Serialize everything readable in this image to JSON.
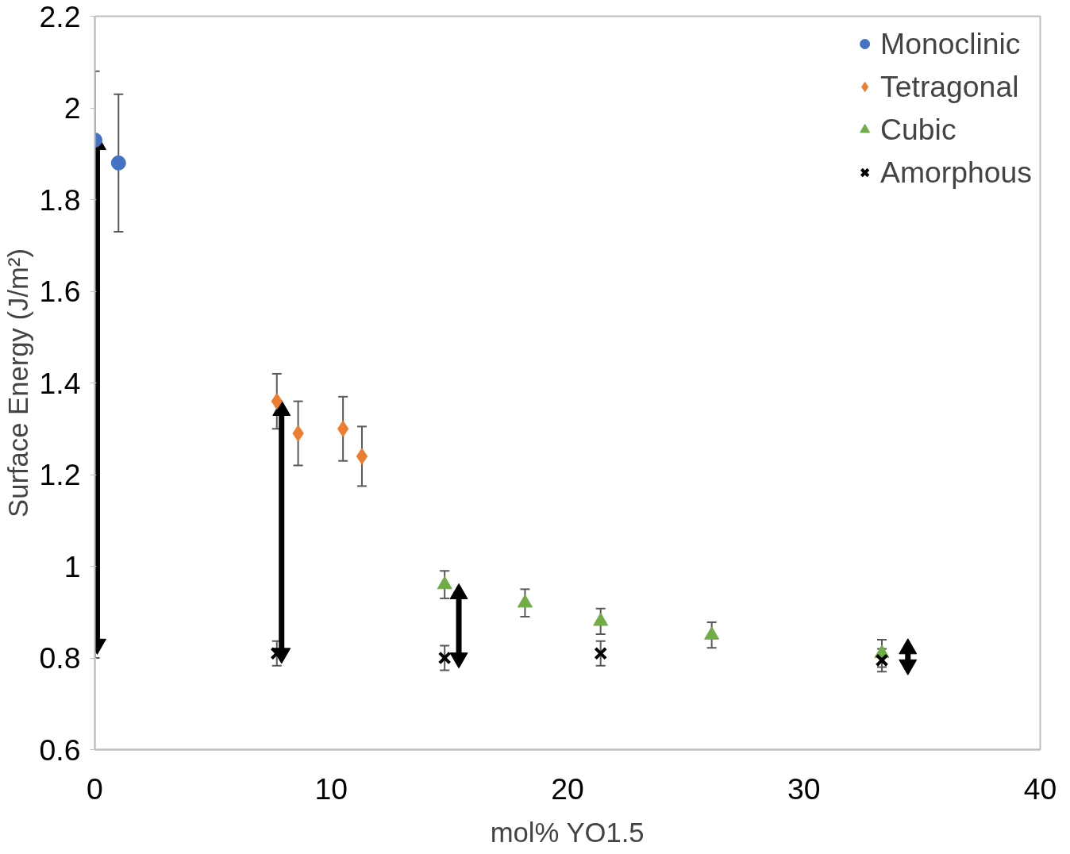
{
  "chart_data": {
    "type": "scatter",
    "xlabel": "mol% YO1.5",
    "ylabel": "Surface Energy (J/m²)",
    "xlim": [
      0,
      40
    ],
    "xticks": [
      0,
      10,
      20,
      30,
      40
    ],
    "ylim": [
      0.6,
      2.2
    ],
    "yticks": [
      0.6,
      0.8,
      1,
      1.2,
      1.4,
      1.6,
      1.8,
      2,
      2.2
    ],
    "grid": false,
    "legend": "top right",
    "series": [
      {
        "name": "Monoclinic",
        "color": "#4472c4",
        "marker": "circle",
        "x": [
          0,
          1.0
        ],
        "values": [
          1.93,
          1.88
        ],
        "errors": [
          0.15,
          0.15
        ]
      },
      {
        "name": "Tetragonal",
        "color": "#ed7d31",
        "marker": "diamond",
        "x": [
          7.7,
          8.6,
          10.5,
          11.3
        ],
        "values": [
          1.36,
          1.29,
          1.3,
          1.24
        ],
        "errors": [
          0.06,
          0.07,
          0.07,
          0.065
        ]
      },
      {
        "name": "Cubic",
        "color": "#70ad47",
        "marker": "triangle",
        "x": [
          14.8,
          18.2,
          21.4,
          26.1,
          33.3
        ],
        "values": [
          0.96,
          0.92,
          0.88,
          0.85,
          0.81
        ],
        "errors": [
          0.03,
          0.03,
          0.028,
          0.028,
          0.03
        ]
      },
      {
        "name": "Amorphous",
        "color": "#000000",
        "marker": "cross",
        "x": [
          0,
          7.7,
          14.8,
          21.4,
          33.3
        ],
        "values": [
          0.83,
          0.81,
          0.8,
          0.81,
          0.795
        ],
        "errors": [
          0.03,
          0.027,
          0.027,
          0.027,
          0.025
        ]
      },
      {
        "type": "line",
        "color": "#000000",
        "marker": "triangle",
        "x": [
          0.1,
          0.1
        ],
        "values": [
          0.83,
          1.92
        ]
      },
      {
        "type": "line",
        "color": "#000000",
        "marker": "triangle",
        "x": [
          7.9,
          7.9
        ],
        "values": [
          0.81,
          1.34
        ]
      },
      {
        "type": "line",
        "color": "#000000",
        "marker": "triangle",
        "x": [
          15.4,
          15.4
        ],
        "values": [
          0.8,
          0.94
        ]
      },
      {
        "type": "line",
        "color": "#000000",
        "marker": "triangle",
        "x": [
          34.4,
          34.4
        ],
        "values": [
          0.785,
          0.82
        ]
      }
    ]
  }
}
